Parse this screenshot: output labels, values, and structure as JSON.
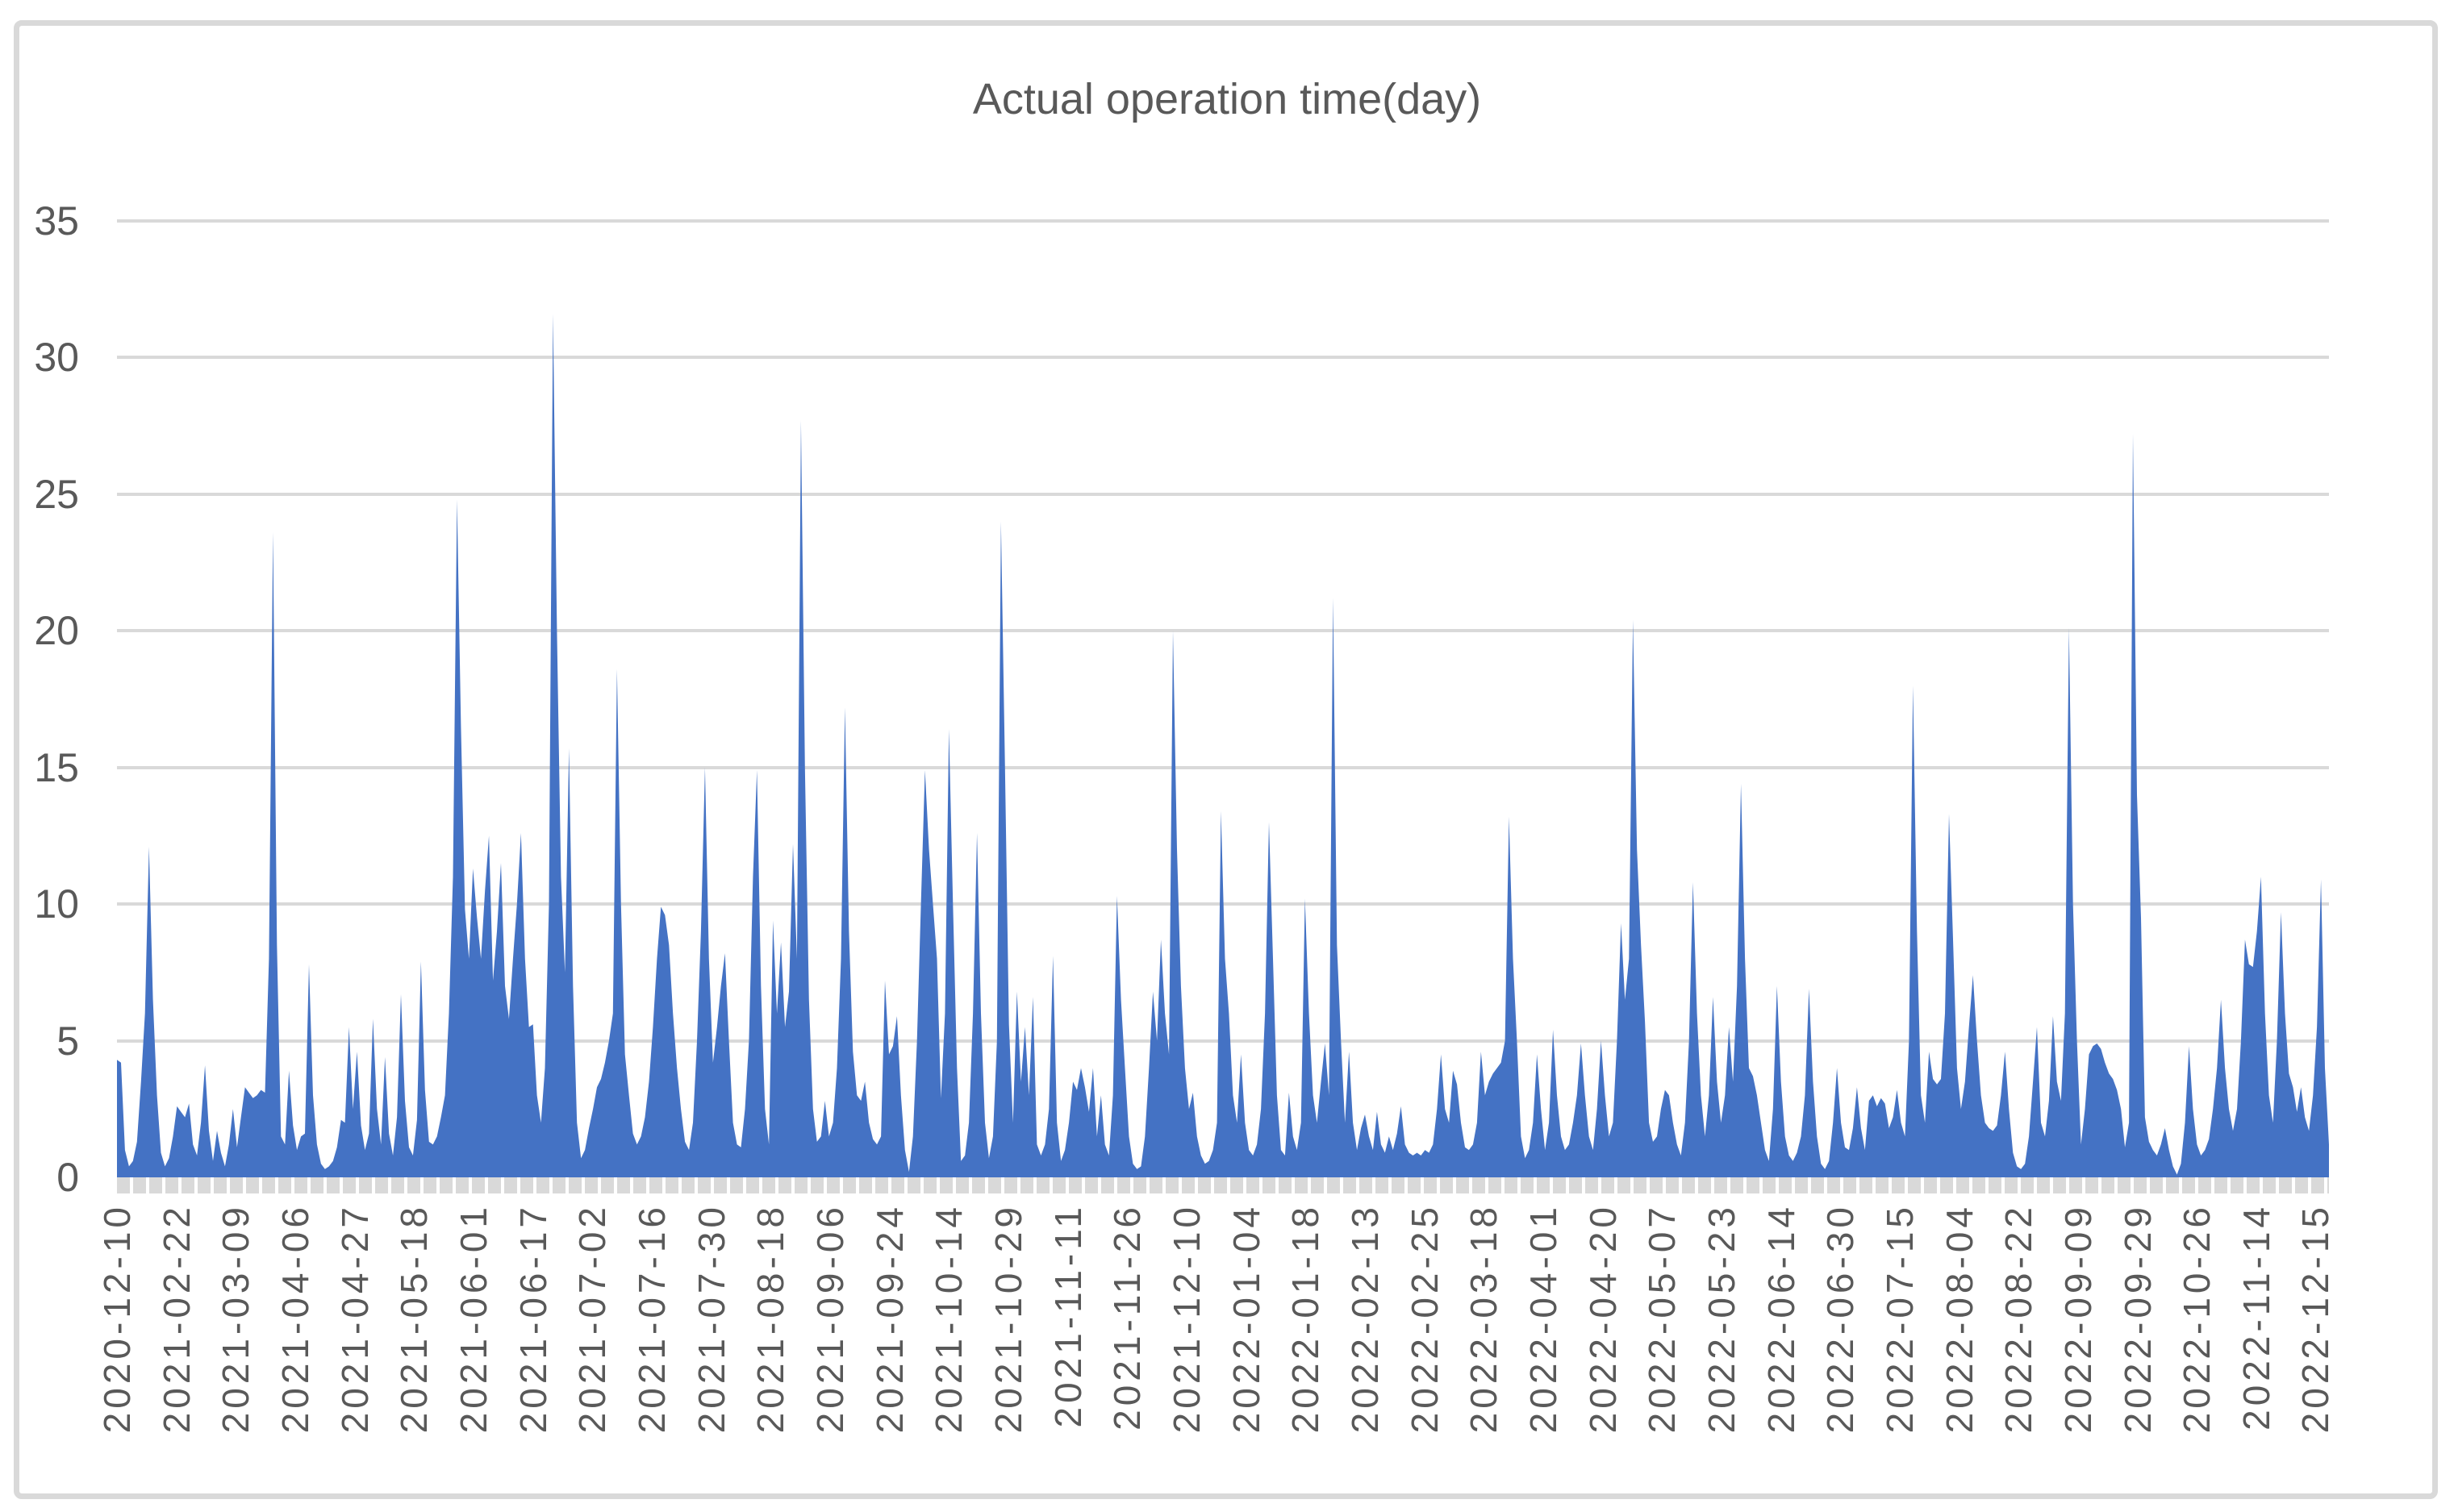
{
  "window": {
    "background": "#FFFFFF",
    "frame_color": "#D9D9D9"
  },
  "chart_data": {
    "type": "area",
    "title": "Actual operation time(day)",
    "xlabel": "",
    "ylabel": "",
    "ylim": [
      0,
      35
    ],
    "y_ticks": [
      35,
      30,
      25,
      20,
      15,
      10,
      5,
      0
    ],
    "grid": "horizontal",
    "legend": "none",
    "area_color": "#4472C4",
    "gridline_color": "#D9D9D9",
    "axis_strip_color": "#D9D9D9",
    "text_color": "#595959",
    "x_tick_labels": [
      "2020-12-10",
      "2021-02-22",
      "2021-03-09",
      "2021-04-06",
      "2021-04-27",
      "2021-05-18",
      "2021-06-01",
      "2021-06-17",
      "2021-07-02",
      "2021-07-16",
      "2021-07-30",
      "2021-08-18",
      "2021-09-06",
      "2021-09-24",
      "2021-10-14",
      "2021-10-29",
      "2021-11-11",
      "2021-11-26",
      "2021-12-10",
      "2022-01-04",
      "2022-01-18",
      "2022-02-13",
      "2022-02-25",
      "2022-03-18",
      "2022-04-01",
      "2022-04-20",
      "2022-05-07",
      "2022-05-23",
      "2022-06-14",
      "2022-06-30",
      "2022-07-15",
      "2022-08-04",
      "2022-08-22",
      "2022-09-09",
      "2022-09-29",
      "2022-10-26",
      "2022-11-14",
      "2022-12-15"
    ],
    "values": [
      4.3,
      4.2,
      1.0,
      0.4,
      0.6,
      1.3,
      3.5,
      6.0,
      12.1,
      6.5,
      3.0,
      0.9,
      0.4,
      0.7,
      1.5,
      2.6,
      2.4,
      2.2,
      2.7,
      1.2,
      0.8,
      2.0,
      4.1,
      1.7,
      0.6,
      1.7,
      0.9,
      0.4,
      1.2,
      2.5,
      1.1,
      2.2,
      3.3,
      3.1,
      2.9,
      3.0,
      3.2,
      3.1,
      8.0,
      23.6,
      8.5,
      1.5,
      1.2,
      3.9,
      1.9,
      1.0,
      1.5,
      1.6,
      7.8,
      3.0,
      1.2,
      0.5,
      0.3,
      0.4,
      0.6,
      1.1,
      2.1,
      2.0,
      5.5,
      2.5,
      4.6,
      1.9,
      1.0,
      1.6,
      5.8,
      2.5,
      1.2,
      4.4,
      1.6,
      0.8,
      2.2,
      6.7,
      2.8,
      1.1,
      0.8,
      2.1,
      7.9,
      3.2,
      1.3,
      1.2,
      1.5,
      2.2,
      3.0,
      6.0,
      11.0,
      24.8,
      16.5,
      9.8,
      8.0,
      11.3,
      9.5,
      8.0,
      10.5,
      12.5,
      7.2,
      9.0,
      11.5,
      7.0,
      5.8,
      8.0,
      10.0,
      12.6,
      8.0,
      5.5,
      5.6,
      3.0,
      2.0,
      4.0,
      10.0,
      31.6,
      20.0,
      11.0,
      7.5,
      15.7,
      7.0,
      2.0,
      0.7,
      1.0,
      1.8,
      2.5,
      3.3,
      3.6,
      4.2,
      5.0,
      6.0,
      18.6,
      10.0,
      4.5,
      3.0,
      1.6,
      1.2,
      1.5,
      2.2,
      3.5,
      5.5,
      8.0,
      9.9,
      9.6,
      8.5,
      6.0,
      4.0,
      2.5,
      1.3,
      1.0,
      2.0,
      5.0,
      9.0,
      15.0,
      8.0,
      4.2,
      5.5,
      7.0,
      8.2,
      5.0,
      2.0,
      1.2,
      1.1,
      2.5,
      5.0,
      11.0,
      14.9,
      7.0,
      2.5,
      1.2,
      9.4,
      6.0,
      8.6,
      5.5,
      6.8,
      12.2,
      8.0,
      27.7,
      15.0,
      6.5,
      2.5,
      1.3,
      1.5,
      2.8,
      1.5,
      2.0,
      4.0,
      8.0,
      17.2,
      9.0,
      4.6,
      3.0,
      2.8,
      3.5,
      2.0,
      1.4,
      1.2,
      1.5,
      7.2,
      4.5,
      4.8,
      5.9,
      3.0,
      1.0,
      0.2,
      1.5,
      5.0,
      10.0,
      14.9,
      12.0,
      10.0,
      8.0,
      2.9,
      6.0,
      16.4,
      10.0,
      4.0,
      0.6,
      0.8,
      2.0,
      6.0,
      12.6,
      6.0,
      2.0,
      0.7,
      1.5,
      5.0,
      24.0,
      15.0,
      5.6,
      2.0,
      6.8,
      3.5,
      5.5,
      3.0,
      6.6,
      1.2,
      0.8,
      1.2,
      2.5,
      8.1,
      2.0,
      0.6,
      1.0,
      2.0,
      3.5,
      3.2,
      4.0,
      3.3,
      2.4,
      4.0,
      1.5,
      3.0,
      1.2,
      0.8,
      3.0,
      10.3,
      6.5,
      4.0,
      1.5,
      0.5,
      0.3,
      0.4,
      1.5,
      4.0,
      6.8,
      5.0,
      8.7,
      6.0,
      4.5,
      20.0,
      12.0,
      7.0,
      4.0,
      2.5,
      3.1,
      1.5,
      0.8,
      0.5,
      0.6,
      1.0,
      2.0,
      13.4,
      8.0,
      6.0,
      3.0,
      2.0,
      4.5,
      2.0,
      1.0,
      0.8,
      1.2,
      2.5,
      6.0,
      13.0,
      8.0,
      3.0,
      1.0,
      0.8,
      3.1,
      1.5,
      1.0,
      2.0,
      10.2,
      6.0,
      3.0,
      2.0,
      3.5,
      4.9,
      3.0,
      21.2,
      8.5,
      5.0,
      2.0,
      4.6,
      2.0,
      1.0,
      1.8,
      2.3,
      1.5,
      1.0,
      2.4,
      1.2,
      0.9,
      1.5,
      1.0,
      1.6,
      2.6,
      1.2,
      0.9,
      0.8,
      0.9,
      0.8,
      1.0,
      0.9,
      1.2,
      2.5,
      4.5,
      2.5,
      2.0,
      3.9,
      3.4,
      2.0,
      1.1,
      1.0,
      1.2,
      2.0,
      4.6,
      3.0,
      3.5,
      3.8,
      4.0,
      4.2,
      5.0,
      13.2,
      8.0,
      5.0,
      1.5,
      0.7,
      1.0,
      2.0,
      4.5,
      2.5,
      1.0,
      2.0,
      5.4,
      3.0,
      1.5,
      1.0,
      1.2,
      2.0,
      3.0,
      4.9,
      3.0,
      1.5,
      1.0,
      2.5,
      5.0,
      3.0,
      1.5,
      2.0,
      5.0,
      9.3,
      6.5,
      8.0,
      20.4,
      12.0,
      8.5,
      5.7,
      2.0,
      1.3,
      1.5,
      2.5,
      3.2,
      3.0,
      2.0,
      1.2,
      0.8,
      2.0,
      5.0,
      10.8,
      6.0,
      3.0,
      1.5,
      3.0,
      6.6,
      3.5,
      2.0,
      3.0,
      5.5,
      3.5,
      7.0,
      14.4,
      8.0,
      4.0,
      3.7,
      3.0,
      2.0,
      1.0,
      0.6,
      2.5,
      7.0,
      3.5,
      1.5,
      0.8,
      0.6,
      0.9,
      1.5,
      3.0,
      6.9,
      3.5,
      1.5,
      0.5,
      0.3,
      0.6,
      2.0,
      4.0,
      2.0,
      1.1,
      1.0,
      1.8,
      3.3,
      1.8,
      1.0,
      2.8,
      3.0,
      2.6,
      2.9,
      2.7,
      1.8,
      2.2,
      3.2,
      2.0,
      1.5,
      5.0,
      18.0,
      9.0,
      3.0,
      2.0,
      4.6,
      3.6,
      3.4,
      3.6,
      6.0,
      13.3,
      8.8,
      4.0,
      2.5,
      3.5,
      5.5,
      7.4,
      5.0,
      3.0,
      2.0,
      1.8,
      1.7,
      1.9,
      3.0,
      4.6,
      2.5,
      0.9,
      0.4,
      0.3,
      0.5,
      1.5,
      3.5,
      5.5,
      2.0,
      1.5,
      2.8,
      5.9,
      3.5,
      2.8,
      6.0,
      20.1,
      10.0,
      5.0,
      1.2,
      2.5,
      4.5,
      4.8,
      4.9,
      4.7,
      4.2,
      3.8,
      3.6,
      3.2,
      2.5,
      1.1,
      2.0,
      27.2,
      14.0,
      9.5,
      2.2,
      1.3,
      1.0,
      0.8,
      1.2,
      1.8,
      1.0,
      0.4,
      0.1,
      0.5,
      2.0,
      4.8,
      2.5,
      1.2,
      0.8,
      1.0,
      1.4,
      2.5,
      4.0,
      6.5,
      4.0,
      2.5,
      1.7,
      2.5,
      5.0,
      8.7,
      7.8,
      7.7,
      9.0,
      11.0,
      6.0,
      3.0,
      2.0,
      5.0,
      9.7,
      6.0,
      3.8,
      3.3,
      2.4,
      3.3,
      2.2,
      1.7,
      3.0,
      5.5,
      10.9,
      4.0,
      1.2
    ]
  }
}
